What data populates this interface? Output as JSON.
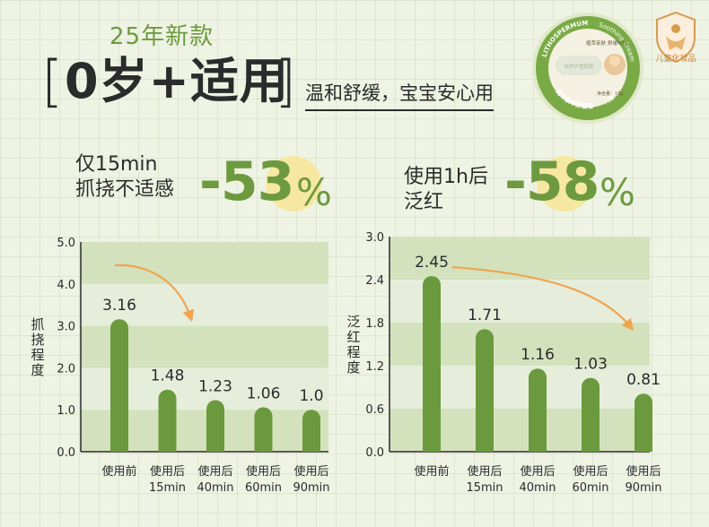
{
  "header": {
    "new_tag": "25年新款",
    "bracket_left": "[",
    "bracket_right": "]",
    "headline": "0岁+适用",
    "subline": "温和舒缓，宝宝安心用",
    "seal_label": "儿童化妆品"
  },
  "product": {
    "brand": "LITHOSPERMUM",
    "brand_sub": "Soothing Cream",
    "net": "净含量：15g",
    "lid_text": "自然护理肌肤",
    "claim1": "植萃亲肤",
    "claim2": "舒缓呵护",
    "name": "润本紫草舒缓膏",
    "kid": "儿童版"
  },
  "stat1": {
    "line1": "仅15min",
    "line2": "抓挠不适感",
    "value": "-53",
    "unit": "%"
  },
  "stat2": {
    "line1": "使用1h后",
    "line2": "泛红",
    "value": "-58",
    "unit": "%"
  },
  "colors": {
    "bar": "#6a9a3d",
    "arrow": "#f0a450",
    "band_dark": "#d3e2bc",
    "band_light": "#e6eedb",
    "accent_text": "#6e9a3f",
    "dot": "#f6e8a0"
  },
  "chart_data": [
    {
      "type": "bar",
      "title": "",
      "ylabel": "抓挠程度",
      "xlabel": "",
      "ylim": [
        0,
        5
      ],
      "yticks": [
        "0.0",
        "1.0",
        "2.0",
        "3.0",
        "4.0",
        "5.0"
      ],
      "categories": [
        [
          "使用前"
        ],
        [
          "使用后",
          "15min"
        ],
        [
          "使用后",
          "40min"
        ],
        [
          "使用后",
          "60min"
        ],
        [
          "使用后",
          "90min"
        ]
      ],
      "values": [
        3.16,
        1.48,
        1.23,
        1.06,
        1.0
      ],
      "value_labels": [
        "3.16",
        "1.48",
        "1.23",
        "1.06",
        "1.0"
      ],
      "grid": "horizontal bands",
      "trend_arrow": true
    },
    {
      "type": "bar",
      "title": "",
      "ylabel": "泛红程度",
      "xlabel": "",
      "ylim": [
        0,
        3
      ],
      "yticks": [
        "0.0",
        "0.6",
        "1.2",
        "1.8",
        "2.4",
        "3.0"
      ],
      "categories": [
        [
          "使用前"
        ],
        [
          "使用后",
          "15min"
        ],
        [
          "使用后",
          "40min"
        ],
        [
          "使用后",
          "60min"
        ],
        [
          "使用后",
          "90min"
        ]
      ],
      "values": [
        2.45,
        1.71,
        1.16,
        1.03,
        0.81
      ],
      "value_labels": [
        "2.45",
        "1.71",
        "1.16",
        "1.03",
        "0.81"
      ],
      "grid": "horizontal bands",
      "trend_arrow": true
    }
  ]
}
